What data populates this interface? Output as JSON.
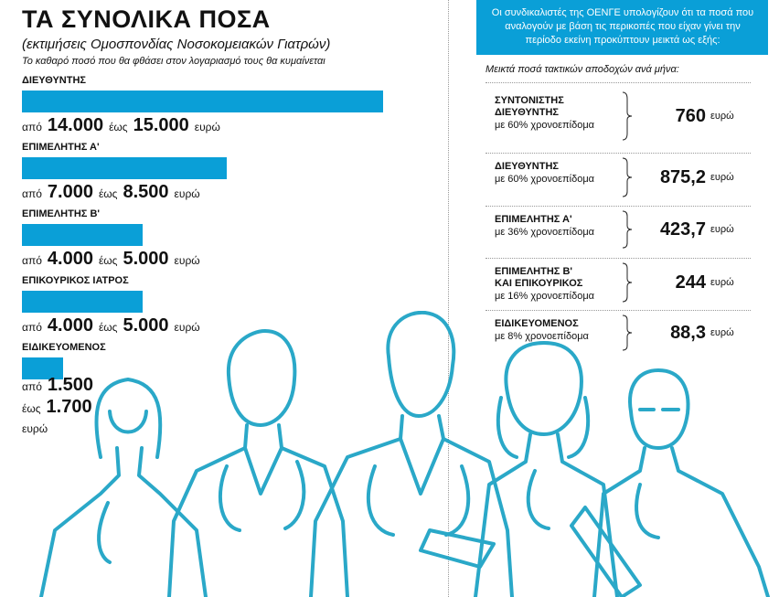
{
  "header": {
    "title": "ΤΑ ΣΥΝΟΛΙΚΑ ΠΟΣΑ",
    "subtitle": "(εκτιμήσεις Ομοσπονδίας Νοσοκομειακών Γιατρών)",
    "note": "Το καθαρό ποσό που θα φθάσει στον λογαριασμό τους θα κυμαίνεται"
  },
  "words": {
    "from": "από",
    "to": "έως",
    "unit": "ευρώ"
  },
  "chart_data": [
    {
      "type": "bar",
      "orientation": "horizontal",
      "title": "ΤΑ ΣΥΝΟΛΙΚΑ ΠΟΣΑ",
      "subtitle": "(εκτιμήσεις Ομοσπονδίας Νοσοκομειακών Γιατρών)",
      "unit": "ευρώ",
      "categories": [
        "ΔΙΕΥΘΥΝΤΗΣ",
        "ΕΠΙΜΕΛΗΤΗΣ Α'",
        "ΕΠΙΜΕΛΗΤΗΣ Β'",
        "ΕΠΙΚΟΥΡΙΚΟΣ ΙΑΤΡΟΣ",
        "ΕΙΔΙΚΕΥΟΜΕΝΟΣ"
      ],
      "from_labels": [
        "14.000",
        "7.000",
        "4.000",
        "4.000",
        "1.500"
      ],
      "to_labels": [
        "15.000",
        "8.500",
        "5.000",
        "5.000",
        "1.700"
      ],
      "min": [
        14000,
        7000,
        4000,
        4000,
        1500
      ],
      "max": [
        15000,
        8500,
        5000,
        5000,
        1700
      ],
      "bar_color": "#0a9fd7"
    },
    {
      "type": "table",
      "intro": "Οι συνδικαλιστές της ΟΕΝΓΕ υπολογίζουν ότι τα ποσά που αναλογούν με βάση τις περικοπές που είχαν γίνει την περίοδο εκείνη προκύπτουν μεικτά ως εξής:",
      "subtitle": "Μεικτά ποσά τακτικών αποδοχών ανά μήνα:",
      "unit": "ευρώ",
      "rows": [
        {
          "label_lines": [
            "ΣΥΝΤΟΝΙΣΤΗΣ",
            "ΔΙΕΥΘΥΝΤΗΣ"
          ],
          "pct": "με 60% χρονοεπίδομα",
          "value": "760"
        },
        {
          "label_lines": [
            "ΔΙΕΥΘΥΝΤΗΣ"
          ],
          "pct": "με 60% χρονοεπίδομα",
          "value": "875,2"
        },
        {
          "label_lines": [
            "ΕΠΙΜΕΛΗΤΗΣ Α'"
          ],
          "pct": "με 36% χρονοεπίδομα",
          "value": "423,7"
        },
        {
          "label_lines": [
            "ΕΠΙΜΕΛΗΤΗΣ Β'",
            "ΚΑΙ ΕΠΙΚΟΥΡΙΚΟΣ"
          ],
          "pct": "με 16% χρονοεπίδομα",
          "value": "244"
        },
        {
          "label_lines": [
            "ΕΙΔΙΚΕΥΟΜΕΝΟΣ"
          ],
          "pct": "με 8% χρονοεπίδομα",
          "value": "88,3"
        }
      ]
    }
  ]
}
